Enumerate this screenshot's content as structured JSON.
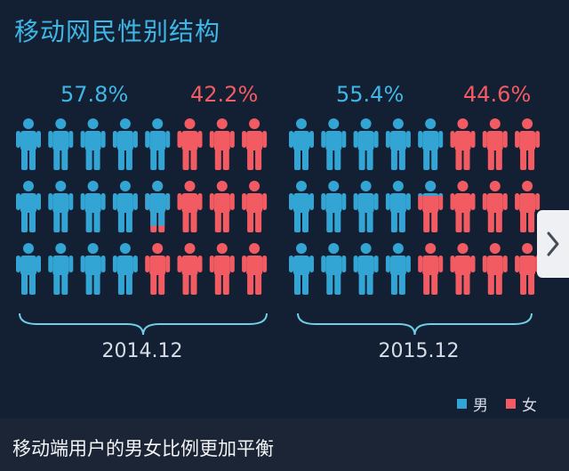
{
  "title": "移动网民性别结构",
  "caption": "移动端用户的男女比例更加平衡",
  "colors": {
    "male": "#33a5d4",
    "female": "#f35b63",
    "accent": "#3fb7e6"
  },
  "legend": [
    {
      "label": "男",
      "color": "#33a5d4"
    },
    {
      "label": "女",
      "color": "#f35b63"
    }
  ],
  "icons": {
    "person": "person-icon",
    "next": "chevron-right-icon"
  },
  "chart_data": {
    "type": "pictogram",
    "icons_per_panel": 24,
    "groups": [
      {
        "period": "2014.12",
        "male_pct_label": "57.8%",
        "female_pct_label": "42.2%",
        "male": 57.8,
        "female": 42.2
      },
      {
        "period": "2015.12",
        "male_pct_label": "55.4%",
        "female_pct_label": "44.6%",
        "male": 55.4,
        "female": 44.6
      }
    ]
  }
}
